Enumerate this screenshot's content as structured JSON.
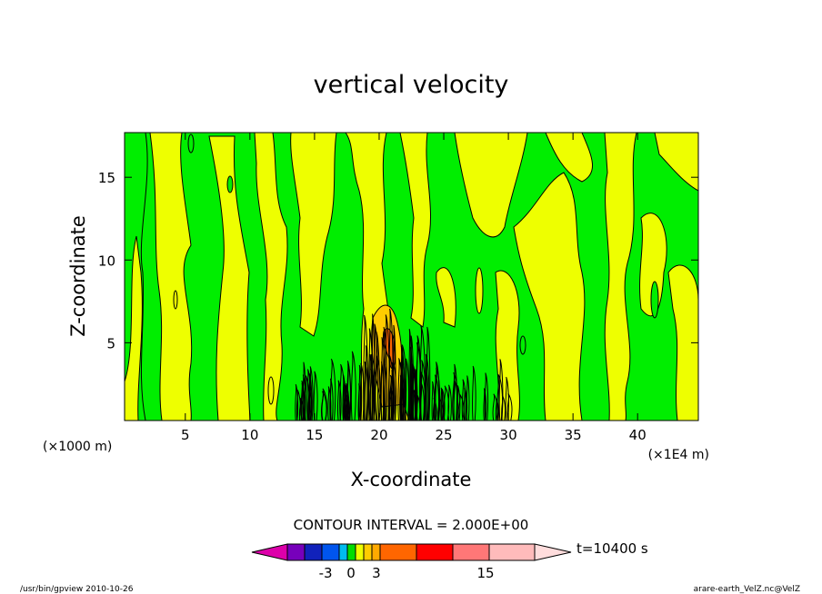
{
  "chart_data": {
    "type": "heatmap",
    "title": "vertical velocity",
    "xlabel": "X-coordinate",
    "ylabel": "Z-coordinate",
    "x_units_left": "(×1000 m)",
    "x_units_right": "(×1E4 m)",
    "xlim": [
      0.3,
      44.7
    ],
    "ylim": [
      0.3,
      17.7
    ],
    "x_ticks": [
      5,
      10,
      15,
      20,
      25,
      30,
      35,
      40
    ],
    "y_ticks": [
      5,
      10,
      15
    ],
    "contour_interval_text": "CONTOUR INTERVAL = 2.000E+00",
    "time_text": "t=10400 s",
    "colorbar": {
      "colors": [
        "#dd00aa",
        "#7700bb",
        "#1122bb",
        "#0055ee",
        "#00bbee",
        "#00dd00",
        "#eeff00",
        "#ffcc00",
        "#ffaa00",
        "#ff6600",
        "#ff0000",
        "#ff7777",
        "#ffbbbb",
        "#ffdddd"
      ],
      "tick_labels": [
        "-3",
        "0",
        "3",
        "15"
      ],
      "tick_values": [
        -3,
        0,
        3,
        15
      ]
    },
    "field_colors": {
      "positive_weak": "#eeff00",
      "negative_weak": "#00ee00",
      "positive_moderate": "#ffcc00",
      "positive_strong": "#ff6600"
    }
  },
  "footer": {
    "left": "/usr/bin/gpview   2010-10-26",
    "right": "arare-earth_VelZ.nc@VelZ"
  }
}
